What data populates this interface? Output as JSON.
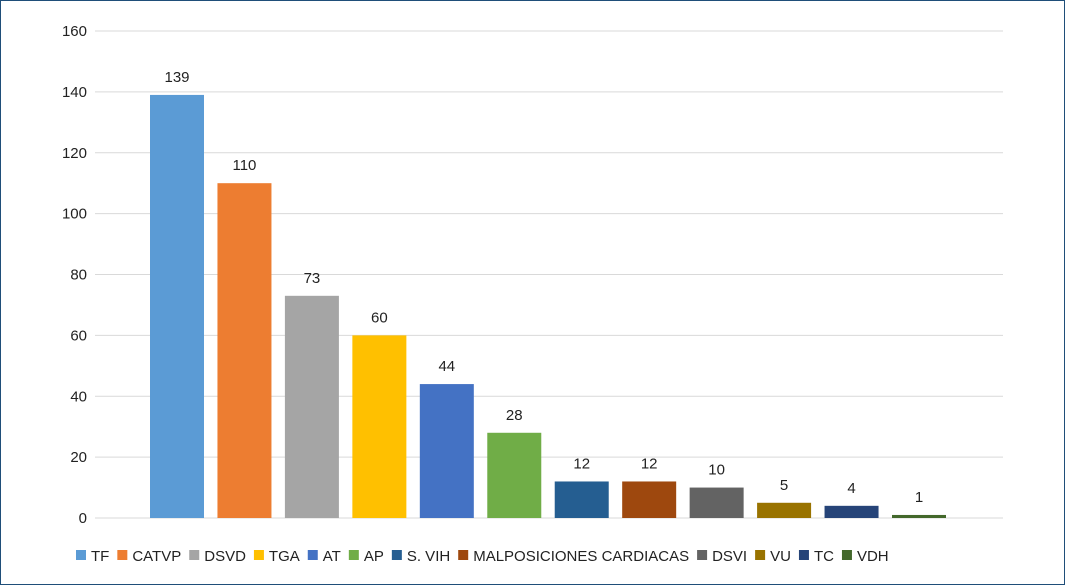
{
  "chart_data": {
    "type": "bar",
    "title": "",
    "xlabel": "",
    "ylabel": "",
    "ylim": [
      0,
      160
    ],
    "yticks": [
      "0",
      "20",
      "40",
      "60",
      "80",
      "100",
      "120",
      "140",
      "160"
    ],
    "grid": true,
    "legend_position": "bottom",
    "categories": [
      "TF",
      "CATVP",
      "DSVD",
      "TGA",
      "AT",
      "AP",
      "S. VIH",
      "MALPOSICIONES CARDIACAS",
      "DSVI",
      "VU",
      "TC",
      "VDH"
    ],
    "values": [
      139,
      110,
      73,
      60,
      44,
      28,
      12,
      12,
      10,
      5,
      4,
      1
    ],
    "colors": [
      "#5b9bd5",
      "#ed7d31",
      "#a5a5a5",
      "#ffc000",
      "#4472c4",
      "#70ad47",
      "#255e91",
      "#9e480e",
      "#636363",
      "#997300",
      "#264478",
      "#43682b"
    ]
  }
}
